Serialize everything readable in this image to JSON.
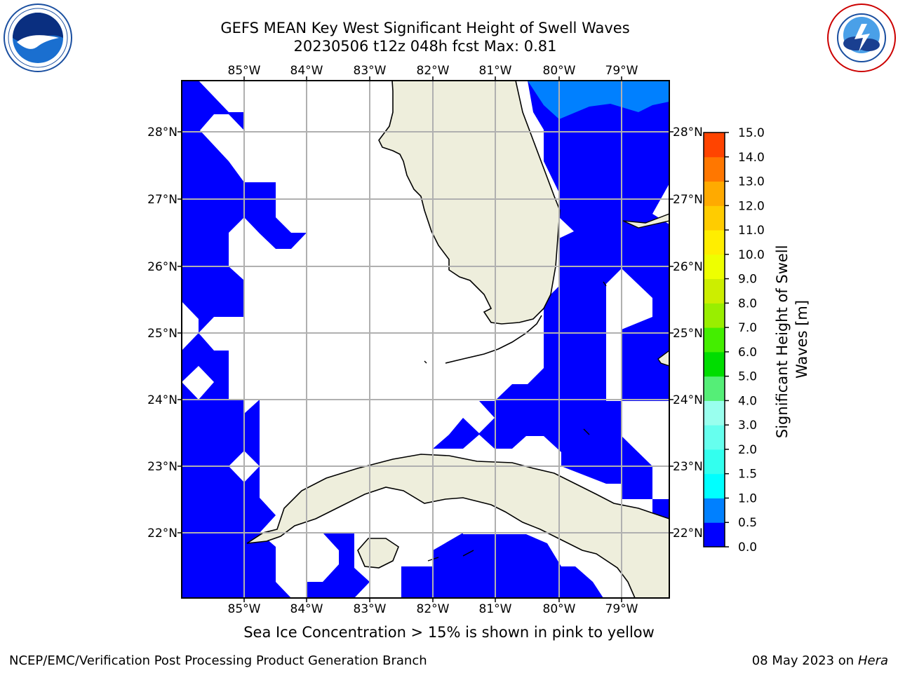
{
  "header": {
    "title_line1": "GEFS MEAN Key West Significant Height of Swell Waves",
    "title_line2": "20230506 t12z 048h fcst   Max: 0.81"
  },
  "map": {
    "lon_labels": [
      "85°W",
      "84°W",
      "83°W",
      "82°W",
      "81°W",
      "80°W",
      "79°W"
    ],
    "lat_labels": [
      "28°N",
      "27°N",
      "26°N",
      "25°N",
      "24°N",
      "23°N",
      "22°N"
    ],
    "colors": {
      "swell_low": "#0000ff",
      "swell_mid": "#0080ff",
      "land": "#eeeedc",
      "grid": "#b0b0b0"
    }
  },
  "colorbar": {
    "label_line1": "Significant Height of Swell",
    "label_line2": "Waves [m]",
    "ticks": [
      "0.0",
      "0.5",
      "1.0",
      "1.5",
      "2.0",
      "3.0",
      "4.0",
      "5.0",
      "6.0",
      "7.0",
      "8.0",
      "9.0",
      "10.0",
      "11.0",
      "12.0",
      "13.0",
      "14.0",
      "15.0"
    ],
    "colors": [
      "#0000ff",
      "#0080ff",
      "#00ffff",
      "#33ffee",
      "#66ffee",
      "#99ffee",
      "#55ee77",
      "#00dd00",
      "#44ee00",
      "#99ee00",
      "#ccee00",
      "#eeff00",
      "#ffee00",
      "#ffcc00",
      "#ffaa00",
      "#ff7700",
      "#ff4400",
      "#ff0000"
    ]
  },
  "footer": {
    "subtitle": "Sea Ice Concentration > 15% is shown in pink to yellow",
    "credit": "NCEP/EMC/Verification Post Processing Product Generation Branch",
    "date": "08 May 2023 on",
    "host": "Hera"
  }
}
